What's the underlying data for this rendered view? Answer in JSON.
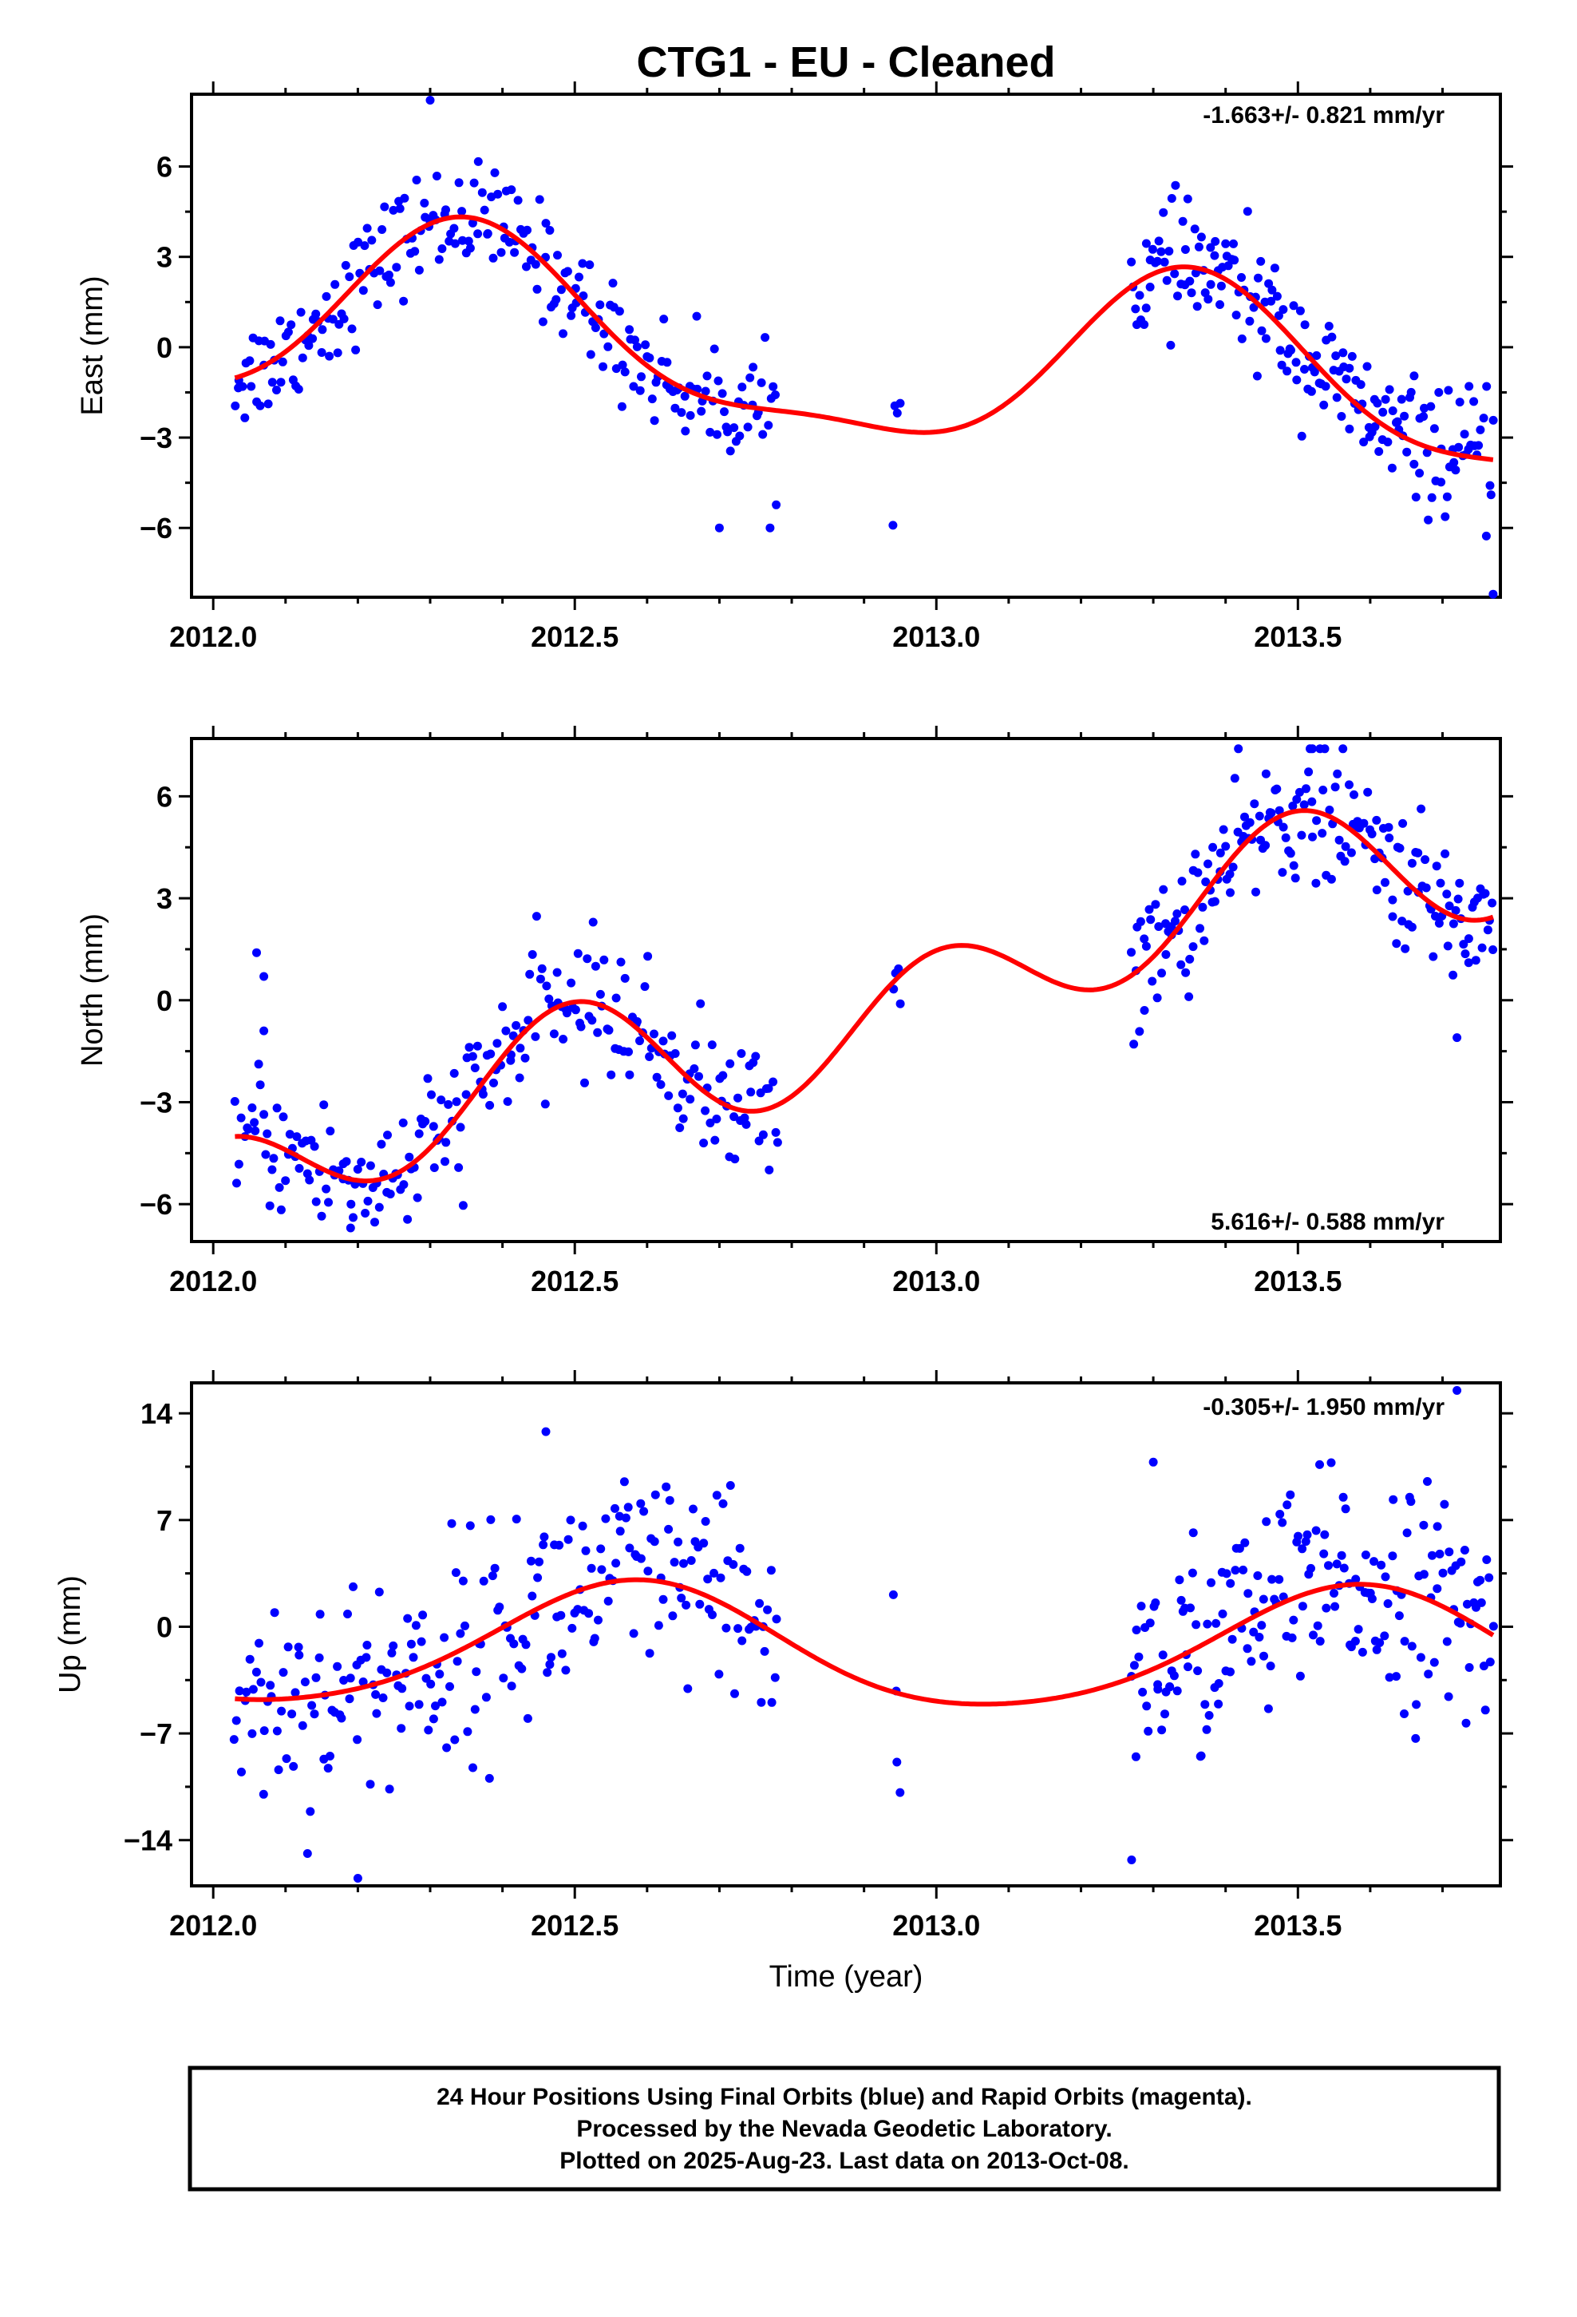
{
  "title": "CTG1  - EU - Cleaned",
  "footer": {
    "lines": [
      "24 Hour Positions Using Final Orbits (blue) and Rapid Orbits (magenta).",
      "Processed by the Nevada Geodetic Laboratory.",
      "Plotted on 2025-Aug-23. Last data on 2013-Oct-08."
    ]
  },
  "colors": {
    "points": "#0000ff",
    "model": "#ff0000",
    "frame": "#000000"
  },
  "chart_data": [
    {
      "type": "scatter",
      "ylabel": "East (mm)",
      "xlabel": "",
      "rate_text": "-1.663+/- 0.821 mm/yr",
      "rate_position": "top-right",
      "xlim": [
        2011.97,
        2013.78
      ],
      "ylim": [
        -8.3,
        8.4
      ],
      "xticks": [
        "2012.0",
        "2012.5",
        "2013.0",
        "2013.5"
      ],
      "yticks": [
        "6",
        "3",
        "0",
        "-3",
        "-6"
      ],
      "ytick_values": [
        6,
        3,
        0,
        -3,
        -6
      ],
      "model": {
        "mean": -0.4,
        "slope": -1.66,
        "annual_amp": 2.92,
        "annual_peak": 0.36,
        "semi_amp": 0.9,
        "semi_peak": 0.34
      },
      "series": [
        {
          "name": "Final Orbits",
          "color": "#0000ff",
          "segments": [
            [
              2012.03,
              2012.78,
              26,
              0.9
            ],
            [
              2012.94,
              2012.95,
              4,
              1.3
            ],
            [
              2013.27,
              2013.77,
              31,
              1.0
            ]
          ],
          "outliers": [
            [
              2012.3,
              8.2
            ],
            [
              2013.77,
              -8.2
            ],
            [
              2012.7,
              -6.0
            ],
            [
              2012.77,
              -6.0
            ]
          ]
        }
      ]
    },
    {
      "type": "scatter",
      "ylabel": "North (mm)",
      "xlabel": "",
      "rate_text": "5.616+/- 0.588 mm/yr",
      "rate_position": "bottom-right",
      "xlim": [
        2011.97,
        2013.78
      ],
      "ylim": [
        -7.1,
        7.7
      ],
      "xticks": [
        "2012.0",
        "2012.5",
        "2013.0",
        "2013.5"
      ],
      "yticks": [
        "6",
        "3",
        "0",
        "-3",
        "-6"
      ],
      "ytick_values": [
        6,
        3,
        0,
        -3,
        -6
      ],
      "model": {
        "mean": -0.2,
        "slope": 5.62,
        "annual_amp": 0.8,
        "annual_peak": 0.4,
        "semi_amp": 1.75,
        "semi_peak": 0.5
      },
      "series": [
        {
          "name": "Final Orbits",
          "color": "#0000ff",
          "segments": [
            [
              2012.03,
              2012.78,
              26,
              1.0
            ],
            [
              2012.94,
              2012.95,
              4,
              1.2
            ],
            [
              2013.27,
              2013.77,
              31,
              1.0
            ]
          ],
          "outliers": [
            [
              2012.06,
              1.4
            ],
            [
              2012.07,
              0.7
            ],
            [
              2012.07,
              -0.9
            ],
            [
              2012.19,
              -6.7
            ],
            [
              2013.52,
              7.4
            ],
            [
              2013.72,
              -1.1
            ]
          ]
        }
      ]
    },
    {
      "type": "scatter",
      "ylabel": "Up (mm)",
      "xlabel": "Time (year)",
      "rate_text": "-0.305+/- 1.950 mm/yr",
      "rate_position": "top-right",
      "xlim": [
        2011.97,
        2013.78
      ],
      "ylim": [
        -17,
        16
      ],
      "xticks": [
        "2012.0",
        "2012.5",
        "2013.0",
        "2013.5"
      ],
      "yticks": [
        "14",
        "7",
        "0",
        "-7",
        "-14"
      ],
      "ytick_values": [
        14,
        7,
        0,
        -7,
        -14
      ],
      "model": {
        "mean": -1.5,
        "slope": -0.3,
        "annual_amp": 4.0,
        "annual_peak": 0.58,
        "semi_amp": 0.5,
        "semi_peak": 0.6
      },
      "series": [
        {
          "name": "Final Orbits",
          "color": "#0000ff",
          "segments": [
            [
              2012.03,
              2012.78,
              26,
              3.6
            ],
            [
              2012.94,
              2012.95,
              4,
              4.0
            ],
            [
              2013.27,
              2013.77,
              31,
              3.6
            ]
          ],
          "outliers": [
            [
              2012.46,
              12.8
            ],
            [
              2012.2,
              -16.5
            ],
            [
              2013.27,
              -15.3
            ],
            [
              2013.72,
              15.5
            ],
            [
              2013.3,
              10.8
            ]
          ]
        }
      ]
    }
  ]
}
